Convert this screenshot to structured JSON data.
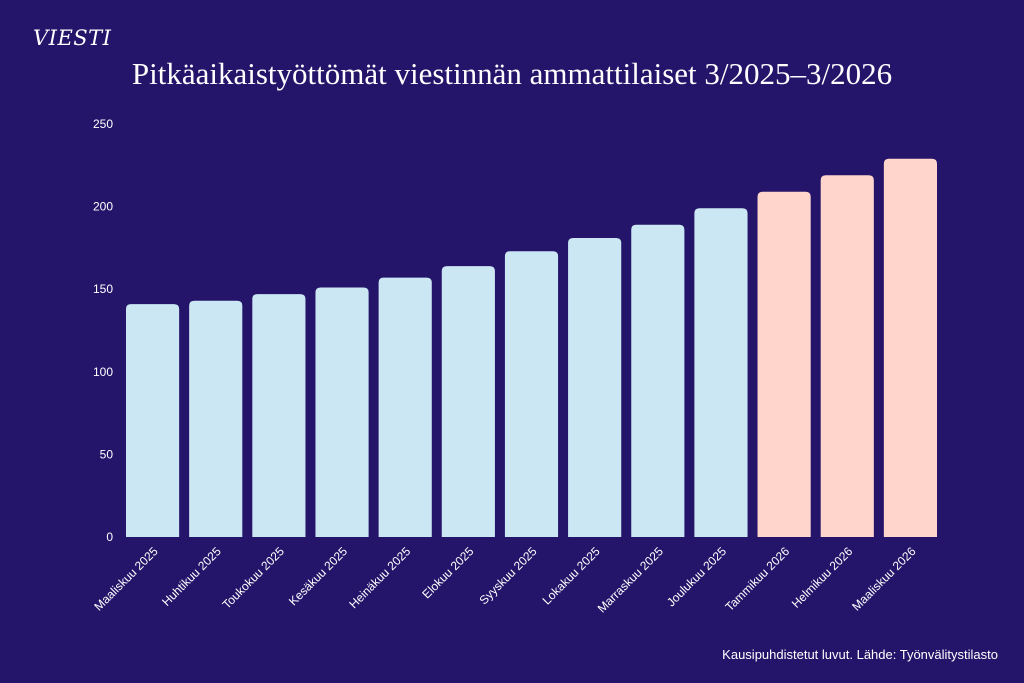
{
  "brand": {
    "logo_text": "VIESTI"
  },
  "footer": {
    "source": "Kausipuhdistetut luvut. Lähde: Työnvälitystilasto"
  },
  "colors": {
    "background": "#24156a",
    "bar_2025": "#cce7f4",
    "bar_2026": "#ffd5cc"
  },
  "chart_data": {
    "type": "bar",
    "title": "Pitkäaikaistyöttömät viestinnän ammattilaiset 3/2025–3/2026",
    "xlabel": "",
    "ylabel": "",
    "ylim": [
      0,
      250
    ],
    "yticks": [
      0,
      50,
      100,
      150,
      200,
      250
    ],
    "grid": false,
    "categories": [
      "Maaliskuu 2025",
      "Huhtikuu 2025",
      "Toukokuu 2025",
      "Kesäkuu 2025",
      "Heinäkuu 2025",
      "Elokuu 2025",
      "Syyskuu 2025",
      "Lokakuu 2025",
      "Marraskuu 2025",
      "Joulukuu 2025",
      "Tammikuu 2026",
      "Helmikuu 2026",
      "Maaliskuu 2026"
    ],
    "values": [
      141,
      143,
      147,
      151,
      157,
      164,
      173,
      181,
      189,
      199,
      209,
      219,
      229
    ],
    "bar_colors": [
      "#cce7f4",
      "#cce7f4",
      "#cce7f4",
      "#cce7f4",
      "#cce7f4",
      "#cce7f4",
      "#cce7f4",
      "#cce7f4",
      "#cce7f4",
      "#cce7f4",
      "#ffd5cc",
      "#ffd5cc",
      "#ffd5cc"
    ]
  }
}
